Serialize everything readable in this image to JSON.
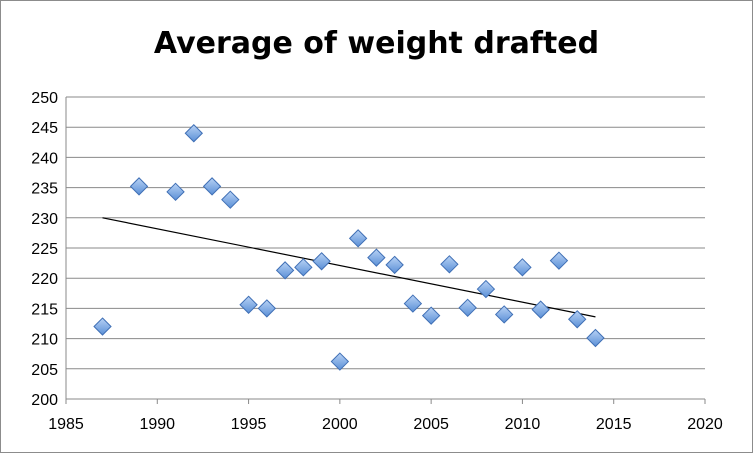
{
  "chart_data": {
    "type": "scatter",
    "title": "Average of weight drafted",
    "xlabel": "",
    "ylabel": "",
    "xlim": [
      1985,
      2020
    ],
    "ylim": [
      200,
      250
    ],
    "x_ticks": [
      1985,
      1990,
      1995,
      2000,
      2005,
      2010,
      2015,
      2020
    ],
    "y_ticks": [
      200,
      205,
      210,
      215,
      220,
      225,
      230,
      235,
      240,
      245,
      250
    ],
    "grid": "horizontal",
    "legend": "none",
    "marker": "diamond",
    "marker_color": "#6fa0e0",
    "trendline_color": "#000000",
    "series": [
      {
        "points": [
          [
            1987,
            212.0
          ],
          [
            1989,
            235.2
          ],
          [
            1991,
            234.3
          ],
          [
            1992,
            244.0
          ],
          [
            1993,
            235.2
          ],
          [
            1994,
            233.0
          ],
          [
            1995,
            215.6
          ],
          [
            1996,
            215.0
          ],
          [
            1997,
            221.3
          ],
          [
            1998,
            221.8
          ],
          [
            1999,
            222.8
          ],
          [
            2000,
            206.2
          ],
          [
            2001,
            226.6
          ],
          [
            2002,
            223.4
          ],
          [
            2003,
            222.2
          ],
          [
            2004,
            215.8
          ],
          [
            2005,
            213.8
          ],
          [
            2006,
            222.3
          ],
          [
            2007,
            215.1
          ],
          [
            2008,
            218.2
          ],
          [
            2009,
            214.0
          ],
          [
            2010,
            221.8
          ],
          [
            2011,
            214.8
          ],
          [
            2012,
            222.9
          ],
          [
            2013,
            213.2
          ],
          [
            2014,
            210.1
          ]
        ]
      }
    ],
    "trendline": {
      "type": "linear",
      "x": [
        1987,
        2014
      ],
      "y": [
        230.0,
        213.6
      ]
    }
  }
}
